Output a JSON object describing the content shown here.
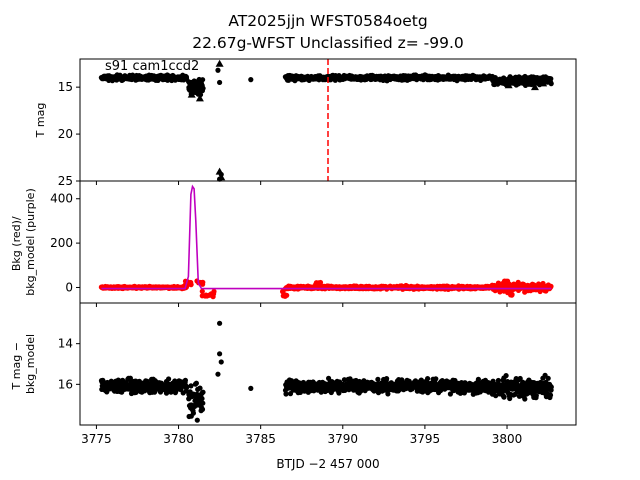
{
  "title_line1": "AT2025jjn  WFST0584oetg",
  "title_line2": "22.67g-WFST Unclassified z= -99.0",
  "xlabel": "BTJD −2 457 000",
  "panel_annotation": "s91 cam1ccd2",
  "colors": {
    "points": "#000000",
    "bkg_points": "#ff0000",
    "bkg_model": "#bf00bf",
    "marker_line": "#ff0000"
  },
  "chart_data": [
    {
      "type": "scatter",
      "ylabel": "T mag",
      "ylim": [
        25,
        12
      ],
      "xlim": [
        3774.0,
        3804.2
      ],
      "x_ticks": [
        3775,
        3780,
        3785,
        3790,
        3795,
        3800
      ],
      "y_ticks": [
        15,
        20,
        25
      ],
      "vline_x": 3789.1,
      "segments": [
        {
          "x0": 3775.3,
          "x1": 3780.5,
          "y": 14.0,
          "spread": 0.35
        },
        {
          "x0": 3780.6,
          "x1": 3781.5,
          "y": 14.9,
          "spread": 1.1
        },
        {
          "x0": 3786.5,
          "x1": 3799.0,
          "y": 14.0,
          "spread": 0.35
        },
        {
          "x0": 3799.1,
          "x1": 3802.7,
          "y": 14.3,
          "spread": 0.6
        }
      ],
      "upper_limits": [
        {
          "x": 3781.0,
          "y": 15.5
        },
        {
          "x": 3781.3,
          "y": 16.2
        },
        {
          "x": 3780.8,
          "y": 15.8
        },
        {
          "x": 3782.5,
          "y": 24.0
        },
        {
          "x": 3782.6,
          "y": 24.6
        },
        {
          "x": 3782.5,
          "y": 12.5
        },
        {
          "x": 3800.1,
          "y": 14.8
        },
        {
          "x": 3801.7,
          "y": 15.0
        },
        {
          "x": 3802.2,
          "y": 14.6
        }
      ],
      "extra_points": [
        {
          "x": 3782.4,
          "y": 13.2
        },
        {
          "x": 3782.5,
          "y": 14.5
        },
        {
          "x": 3784.4,
          "y": 14.2
        },
        {
          "x": 3782.5,
          "y": 24.8
        },
        {
          "x": 3782.6,
          "y": 24.3
        }
      ]
    },
    {
      "type": "scatter+line",
      "ylabel": "Bkg (red)/\nbkg_model (purple)",
      "ylim": [
        -70,
        480
      ],
      "y_ticks": [
        0,
        200,
        400
      ],
      "bkg_segments": [
        {
          "x0": 3775.3,
          "x1": 3780.5,
          "y": 0,
          "spread": 6
        },
        {
          "x0": 3786.5,
          "x1": 3799.0,
          "y": 0,
          "spread": 10
        },
        {
          "x0": 3799.1,
          "x1": 3802.7,
          "y": 0,
          "spread": 25
        }
      ],
      "bkg_spikes": [
        {
          "x": 3780.5,
          "y": 20
        },
        {
          "x": 3780.6,
          "y": 30
        },
        {
          "x": 3781.3,
          "y": 30
        },
        {
          "x": 3781.6,
          "y": -40
        },
        {
          "x": 3782.0,
          "y": -45
        },
        {
          "x": 3786.5,
          "y": -40
        },
        {
          "x": 3788.5,
          "y": 25
        },
        {
          "x": 3799.9,
          "y": 30
        },
        {
          "x": 3800.2,
          "y": -35
        }
      ],
      "model_curve": [
        [
          3775.3,
          -5
        ],
        [
          3780.4,
          -5
        ],
        [
          3780.6,
          50
        ],
        [
          3780.75,
          420
        ],
        [
          3780.85,
          455
        ],
        [
          3780.95,
          445
        ],
        [
          3781.05,
          300
        ],
        [
          3781.2,
          20
        ],
        [
          3781.4,
          -5
        ],
        [
          3789.0,
          -5
        ],
        [
          3802.7,
          -5
        ]
      ]
    },
    {
      "type": "scatter",
      "ylabel": "T mag −\nbkg_model",
      "ylim": [
        18,
        12
      ],
      "y_ticks": [
        14,
        16
      ],
      "segments": [
        {
          "x0": 3775.3,
          "x1": 3780.5,
          "y": 16.1,
          "spread": 0.45
        },
        {
          "x0": 3780.6,
          "x1": 3781.5,
          "y": 16.8,
          "spread": 1.1
        },
        {
          "x0": 3786.5,
          "x1": 3799.0,
          "y": 16.1,
          "spread": 0.45
        },
        {
          "x0": 3799.1,
          "x1": 3802.7,
          "y": 16.2,
          "spread": 0.7
        }
      ],
      "extra_points": [
        {
          "x": 3782.5,
          "y": 13.0
        },
        {
          "x": 3782.5,
          "y": 14.5
        },
        {
          "x": 3782.6,
          "y": 14.9
        },
        {
          "x": 3782.4,
          "y": 15.5
        },
        {
          "x": 3784.4,
          "y": 16.2
        }
      ]
    }
  ]
}
